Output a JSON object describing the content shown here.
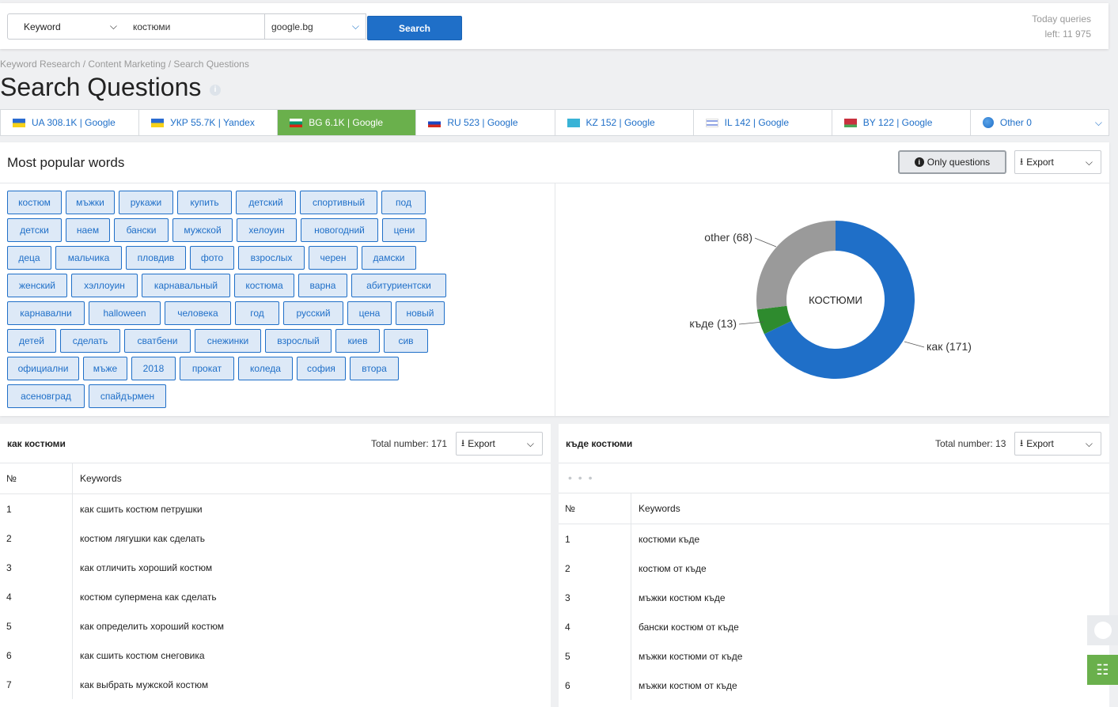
{
  "search": {
    "type_label": "Keyword",
    "keyword_value": "костюми",
    "engine_label": "google.bg",
    "button_label": "Search",
    "quota_line1": "Today queries",
    "quota_line2": "left: 11 975"
  },
  "breadcrumb": "Keyword Research / Content Marketing / Search Questions",
  "page_title": "Search Questions",
  "tabs": [
    {
      "label": "UA 308.1K | Google",
      "flag": "ua",
      "active": false
    },
    {
      "label": "УКР 55.7K | Yandex",
      "flag": "ua",
      "active": false
    },
    {
      "label": "BG 6.1K | Google",
      "flag": "bg",
      "active": true
    },
    {
      "label": "RU 523 | Google",
      "flag": "ru",
      "active": false
    },
    {
      "label": "KZ 152 | Google",
      "flag": "kz",
      "active": false
    },
    {
      "label": "IL 142 | Google",
      "flag": "il",
      "active": false
    },
    {
      "label": "BY 122 | Google",
      "flag": "by",
      "active": false
    },
    {
      "label": "Other 0",
      "flag": "globe-icon",
      "active": false
    }
  ],
  "words_panel": {
    "title": "Most popular words",
    "only_questions_label": "Only questions",
    "export_label": "Export",
    "rows": [
      [
        "костюм",
        "мъжки",
        "рукажи",
        "купить",
        "детский",
        "спортивный",
        "под"
      ],
      [
        "детски",
        "наем",
        "бански",
        "мужской",
        "хелоуин",
        "новогодний",
        "цени"
      ],
      [
        "деца",
        "мальчика",
        "пловдив",
        "фото",
        "взрослых",
        "черен",
        "дамски"
      ],
      [
        "женский",
        "хэллоуин",
        "карнавальный",
        "костюма",
        "варна",
        "абитуриентски"
      ],
      [
        "карнавални",
        "halloween",
        "человека",
        "год",
        "русский",
        "цена",
        "новый"
      ],
      [
        "детей",
        "сделать",
        "сватбени",
        "снежинки",
        "взрослый",
        "киев",
        "сив"
      ],
      [
        "официални",
        "мъже",
        "2018",
        "прокат",
        "коледа",
        "софия",
        "втора"
      ],
      [
        "асеновград",
        "спайдърмен"
      ]
    ]
  },
  "chart_data": {
    "type": "pie",
    "center_label": "КОСТЮМИ",
    "slices": [
      {
        "label": "как (171)",
        "value": 171,
        "color": "#1f6fc8"
      },
      {
        "label": "къде (13)",
        "value": 13,
        "color": "#2e8b2e"
      },
      {
        "label": "other (68)",
        "value": 68,
        "color": "#9a9a9a"
      }
    ]
  },
  "table_left": {
    "title": "как костюми",
    "total": "Total number: 171",
    "export_label": "Export",
    "col_num": "№",
    "col_kw": "Keywords",
    "rows": [
      [
        "1",
        "как сшить костюм петрушки"
      ],
      [
        "2",
        "костюм лягушки как сделать"
      ],
      [
        "3",
        "как отличить хороший костюм"
      ],
      [
        "4",
        "костюм супермена как сделать"
      ],
      [
        "5",
        "как определить хороший костюм"
      ],
      [
        "6",
        "как сшить костюм снеговика"
      ],
      [
        "7",
        "как выбрать мужской костюм"
      ]
    ]
  },
  "table_right": {
    "title": "къде костюми",
    "total": "Total number: 13",
    "export_label": "Export",
    "dots": "• • •",
    "col_num": "№",
    "col_kw": "Keywords",
    "rows": [
      [
        "1",
        "костюми къде"
      ],
      [
        "2",
        "костюм от къде"
      ],
      [
        "3",
        "мъжки костюм къде"
      ],
      [
        "4",
        "бански костюм от къде"
      ],
      [
        "5",
        "мъжки костюми от къде"
      ],
      [
        "6",
        "мъжки костюм от къде"
      ]
    ]
  },
  "colors": {
    "accent": "#1f6fc8",
    "active_tab": "#6ab04c",
    "tag_bg": "#dde9f7"
  }
}
